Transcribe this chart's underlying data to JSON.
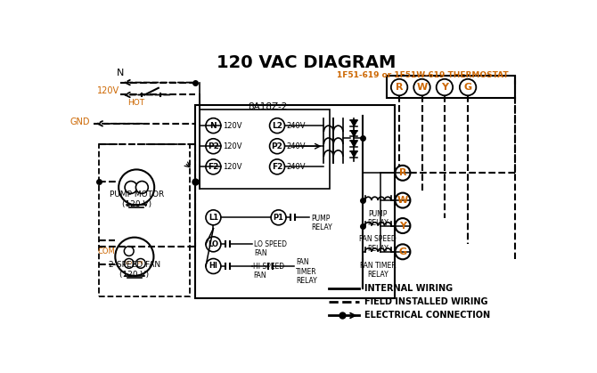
{
  "title": "120 VAC DIAGRAM",
  "bg_color": "#ffffff",
  "black": "#000000",
  "orange": "#cc6600",
  "thermostat_label": "1F51-619 or 1F51W-619 THERMOSTAT",
  "box8a_label": "8A18Z-2",
  "pump_motor_label": "PUMP MOTOR\n(120 V)",
  "speed_fan_label": "2-SPEED FAN\n(120 V)"
}
